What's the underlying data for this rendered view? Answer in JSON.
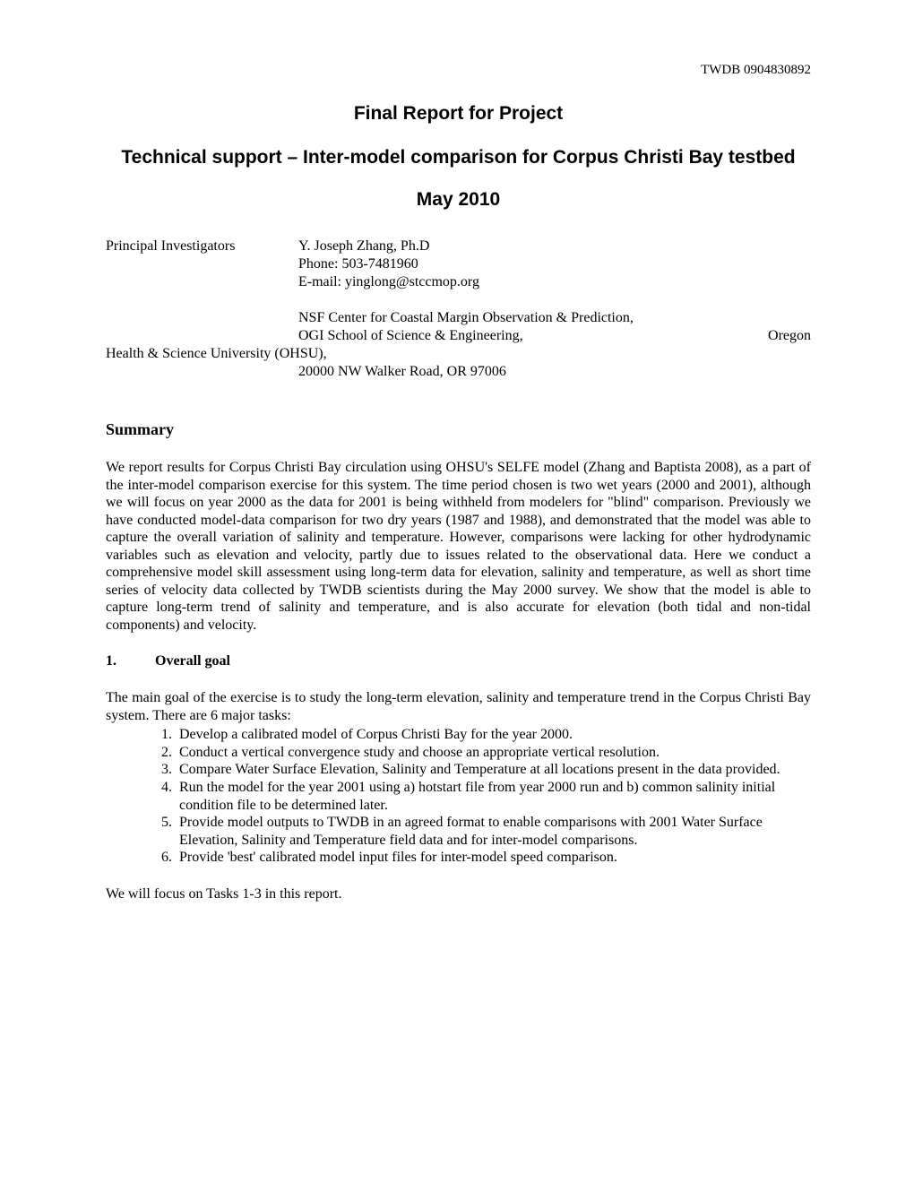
{
  "header": {
    "code": "TWDB 0904830892"
  },
  "titles": {
    "main": "Final Report for Project",
    "sub": "Technical support – Inter-model comparison for Corpus Christi Bay testbed",
    "date": "May 2010"
  },
  "pi": {
    "label": "Principal Investigators",
    "name": "Y. Joseph Zhang, Ph.D",
    "phone": "Phone: 503-7481960",
    "email": "E-mail: yinglong@stccmop.org"
  },
  "affiliation": {
    "line1": "NSF Center for Coastal Margin Observation & Prediction,",
    "line2a": "OGI School of Science & Engineering,",
    "line2b": "Oregon",
    "line3": "Health & Science University (OHSU),",
    "line4": "20000 NW Walker Road, OR 97006"
  },
  "summary": {
    "heading": "Summary",
    "body": "We report results for Corpus Christi Bay circulation using OHSU's SELFE model (Zhang and Baptista 2008), as a part of the inter-model comparison exercise for this system. The time period chosen is two wet years (2000 and 2001), although we will focus on year 2000 as the data for 2001 is being withheld from modelers for \"blind\" comparison. Previously we have conducted model-data comparison for two dry years (1987 and 1988), and demonstrated that the model was able to capture the overall variation of salinity and temperature. However, comparisons were lacking for other hydrodynamic variables such as elevation and velocity, partly due to issues related to the observational data. Here we conduct a comprehensive model skill assessment using long-term data for elevation, salinity and temperature, as well as short time series of velocity data collected by TWDB scientists during the May 2000 survey. We show that the model is able to capture long-term trend of salinity and temperature, and is also accurate for elevation (both tidal and non-tidal components) and velocity."
  },
  "section1": {
    "number": "1.",
    "title": "Overall goal",
    "intro": "The main goal of the exercise is to study the long-term elevation, salinity and temperature trend in the Corpus Christi Bay system. There are 6 major tasks:",
    "tasks": [
      "Develop a calibrated model of Corpus Christi Bay for the year 2000.",
      "Conduct a vertical convergence study and choose an appropriate vertical resolution.",
      "Compare Water Surface Elevation, Salinity and Temperature at all locations present in the data provided.",
      "Run the model for the year 2001 using a) hotstart file from year 2000 run and b) common salinity initial condition file to be determined later.",
      "Provide model outputs to TWDB in an agreed format to enable comparisons with 2001 Water Surface Elevation, Salinity and Temperature field data and for inter-model comparisons.",
      "Provide 'best' calibrated model input files for inter-model speed comparison."
    ],
    "closing": "We will focus on Tasks 1-3 in this report."
  }
}
